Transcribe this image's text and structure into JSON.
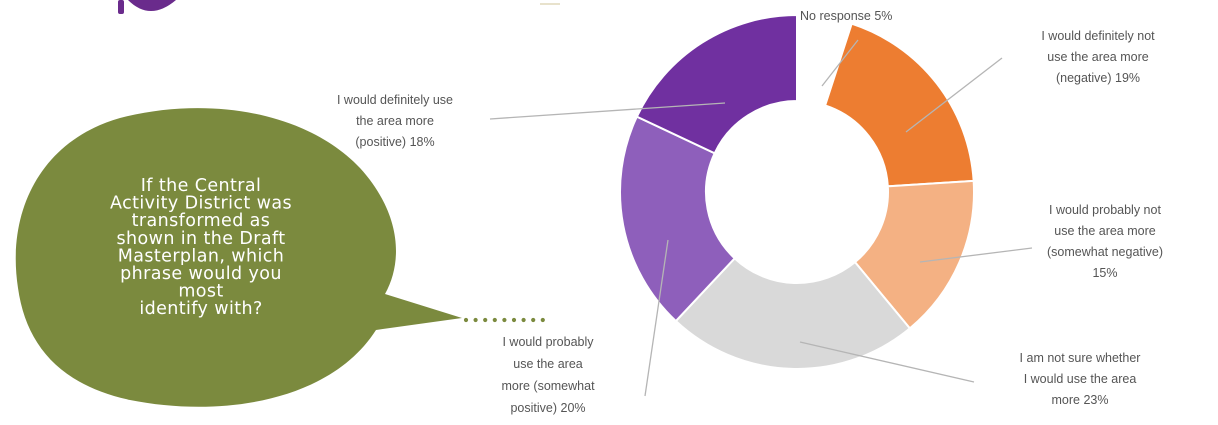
{
  "question": {
    "lines": [
      "If the Central",
      "Activity District was",
      "transformed as",
      "shown in the Draft",
      "Masterplan, which",
      "phrase would you",
      "most",
      "identify with?"
    ],
    "bubble_color": "#7b8a3e"
  },
  "chart_data": {
    "type": "pie",
    "variant": "donut",
    "unit": "%",
    "slices": [
      {
        "label": "No response",
        "value": 5,
        "color": "#ffffff",
        "label_lines": [
          "No response 5%"
        ]
      },
      {
        "label": "I would definitely not use the area more (negative)",
        "value": 19,
        "color": "#ed7d31",
        "label_lines": [
          "I would definitely not",
          "use the area more",
          "(negative) 19%"
        ]
      },
      {
        "label": "I would probably not use the area more (somewhat negative)",
        "value": 15,
        "color": "#f4b183",
        "label_lines": [
          "I would probably not",
          "use the area more",
          "(somewhat negative)",
          "15%"
        ]
      },
      {
        "label": "I am not sure whether I would use the area more",
        "value": 23,
        "color": "#d9d9d9",
        "label_lines": [
          "I am not sure whether",
          "I would use the area",
          "more 23%"
        ]
      },
      {
        "label": "I would probably use the area more (somewhat positive)",
        "value": 20,
        "color": "#8e5fbb",
        "label_lines": [
          "I would probably",
          "use the area",
          "more (somewhat",
          "positive) 20%"
        ]
      },
      {
        "label": "I would definitely use the area more (positive)",
        "value": 18,
        "color": "#7030a0",
        "label_lines": [
          "I would definitely use",
          "the area more",
          "(positive) 18%"
        ]
      }
    ]
  }
}
